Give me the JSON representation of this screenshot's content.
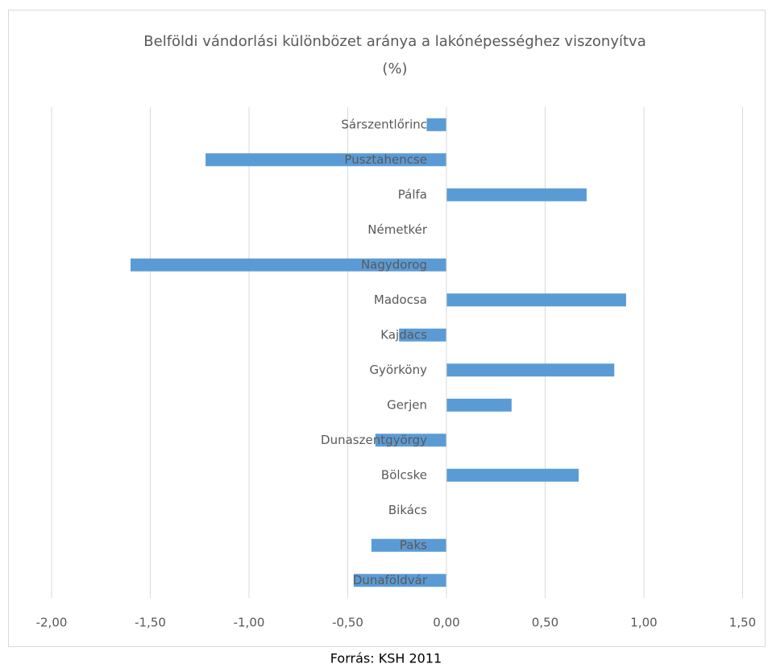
{
  "chart_data": {
    "type": "barh",
    "title": "Belföldi vándorlási különbözet aránya a lakónépességhez viszonyítva",
    "subtitle": "(%)",
    "source": "Forrás: KSH 2011",
    "categories": [
      "Sárszentlőrinc",
      "Pusztahencse",
      "Pálfa",
      "Németkér",
      "Nagydorog",
      "Madocsa",
      "Kajdacs",
      "Györköny",
      "Gerjen",
      "Dunaszentgyörgy",
      "Bölcske",
      "Bikács",
      "Paks",
      "Dunaföldvár"
    ],
    "values": [
      -0.1,
      -1.22,
      0.71,
      0,
      -1.6,
      0.91,
      -0.24,
      0.85,
      0.33,
      -0.36,
      0.67,
      0,
      -0.38,
      -0.47
    ],
    "color": "#5b9bd5",
    "xlim": [
      -2.1,
      1.6
    ],
    "xticks": [
      {
        "value": -2,
        "label": "-2,00"
      },
      {
        "value": -1.5,
        "label": "-1,50"
      },
      {
        "value": -1,
        "label": "-1,00"
      },
      {
        "value": -0.5,
        "label": "-0,50"
      },
      {
        "value": 0,
        "label": "0,00"
      },
      {
        "value": 0.5,
        "label": "0,50"
      },
      {
        "value": 1,
        "label": "1,00"
      },
      {
        "value": 1.5,
        "label": "1,50"
      }
    ],
    "grid": true
  }
}
